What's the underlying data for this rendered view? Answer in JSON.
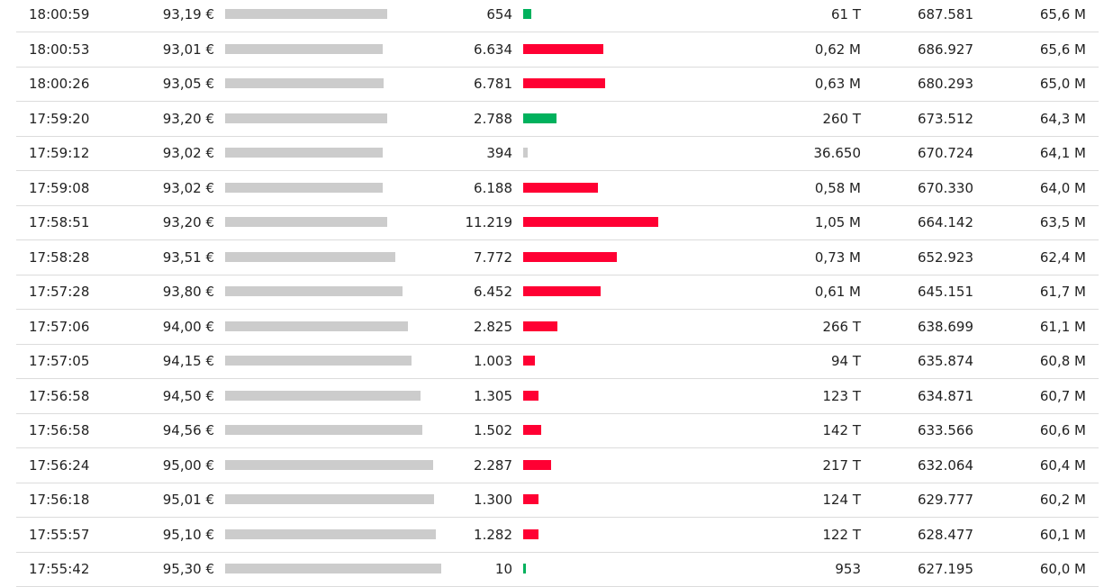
{
  "colors": {
    "up": "#00b15d",
    "down": "#ff0033",
    "neutral": "#cccccc",
    "price_bar": "#cccccc",
    "divider": "#dcdcdc",
    "text": "#222222"
  },
  "trades": [
    {
      "time": "18:00:59",
      "price": "93,19 €",
      "price_value": 93.19,
      "volume": "654",
      "volume_value": 654,
      "direction": "up",
      "turnover": "61 T",
      "cum_volume": "687.581",
      "cum_turnover": "65,6 M"
    },
    {
      "time": "18:00:53",
      "price": "93,01 €",
      "price_value": 93.01,
      "volume": "6.634",
      "volume_value": 6634,
      "direction": "down",
      "turnover": "0,62 M",
      "cum_volume": "686.927",
      "cum_turnover": "65,6 M"
    },
    {
      "time": "18:00:26",
      "price": "93,05 €",
      "price_value": 93.05,
      "volume": "6.781",
      "volume_value": 6781,
      "direction": "down",
      "turnover": "0,63 M",
      "cum_volume": "680.293",
      "cum_turnover": "65,0 M"
    },
    {
      "time": "17:59:20",
      "price": "93,20 €",
      "price_value": 93.2,
      "volume": "2.788",
      "volume_value": 2788,
      "direction": "up",
      "turnover": "260 T",
      "cum_volume": "673.512",
      "cum_turnover": "64,3 M"
    },
    {
      "time": "17:59:12",
      "price": "93,02 €",
      "price_value": 93.02,
      "volume": "394",
      "volume_value": 394,
      "direction": "neutral",
      "turnover": "36.650",
      "cum_volume": "670.724",
      "cum_turnover": "64,1 M"
    },
    {
      "time": "17:59:08",
      "price": "93,02 €",
      "price_value": 93.02,
      "volume": "6.188",
      "volume_value": 6188,
      "direction": "down",
      "turnover": "0,58 M",
      "cum_volume": "670.330",
      "cum_turnover": "64,0 M"
    },
    {
      "time": "17:58:51",
      "price": "93,20 €",
      "price_value": 93.2,
      "volume": "11.219",
      "volume_value": 11219,
      "direction": "down",
      "turnover": "1,05 M",
      "cum_volume": "664.142",
      "cum_turnover": "63,5 M"
    },
    {
      "time": "17:58:28",
      "price": "93,51 €",
      "price_value": 93.51,
      "volume": "7.772",
      "volume_value": 7772,
      "direction": "down",
      "turnover": "0,73 M",
      "cum_volume": "652.923",
      "cum_turnover": "62,4 M"
    },
    {
      "time": "17:57:28",
      "price": "93,80 €",
      "price_value": 93.8,
      "volume": "6.452",
      "volume_value": 6452,
      "direction": "down",
      "turnover": "0,61 M",
      "cum_volume": "645.151",
      "cum_turnover": "61,7 M"
    },
    {
      "time": "17:57:06",
      "price": "94,00 €",
      "price_value": 94.0,
      "volume": "2.825",
      "volume_value": 2825,
      "direction": "down",
      "turnover": "266 T",
      "cum_volume": "638.699",
      "cum_turnover": "61,1 M"
    },
    {
      "time": "17:57:05",
      "price": "94,15 €",
      "price_value": 94.15,
      "volume": "1.003",
      "volume_value": 1003,
      "direction": "down",
      "turnover": "94 T",
      "cum_volume": "635.874",
      "cum_turnover": "60,8 M"
    },
    {
      "time": "17:56:58",
      "price": "94,50 €",
      "price_value": 94.5,
      "volume": "1.305",
      "volume_value": 1305,
      "direction": "down",
      "turnover": "123 T",
      "cum_volume": "634.871",
      "cum_turnover": "60,7 M"
    },
    {
      "time": "17:56:58",
      "price": "94,56 €",
      "price_value": 94.56,
      "volume": "1.502",
      "volume_value": 1502,
      "direction": "down",
      "turnover": "142 T",
      "cum_volume": "633.566",
      "cum_turnover": "60,6 M"
    },
    {
      "time": "17:56:24",
      "price": "95,00 €",
      "price_value": 95.0,
      "volume": "2.287",
      "volume_value": 2287,
      "direction": "down",
      "turnover": "217 T",
      "cum_volume": "632.064",
      "cum_turnover": "60,4 M"
    },
    {
      "time": "17:56:18",
      "price": "95,01 €",
      "price_value": 95.01,
      "volume": "1.300",
      "volume_value": 1300,
      "direction": "down",
      "turnover": "124 T",
      "cum_volume": "629.777",
      "cum_turnover": "60,2 M"
    },
    {
      "time": "17:55:57",
      "price": "95,10 €",
      "price_value": 95.1,
      "volume": "1.282",
      "volume_value": 1282,
      "direction": "down",
      "turnover": "122 T",
      "cum_volume": "628.477",
      "cum_turnover": "60,1 M"
    },
    {
      "time": "17:55:42",
      "price": "95,30 €",
      "price_value": 95.3,
      "volume": "10",
      "volume_value": 10,
      "direction": "up",
      "turnover": "953",
      "cum_volume": "627.195",
      "cum_turnover": "60,0 M"
    }
  ]
}
